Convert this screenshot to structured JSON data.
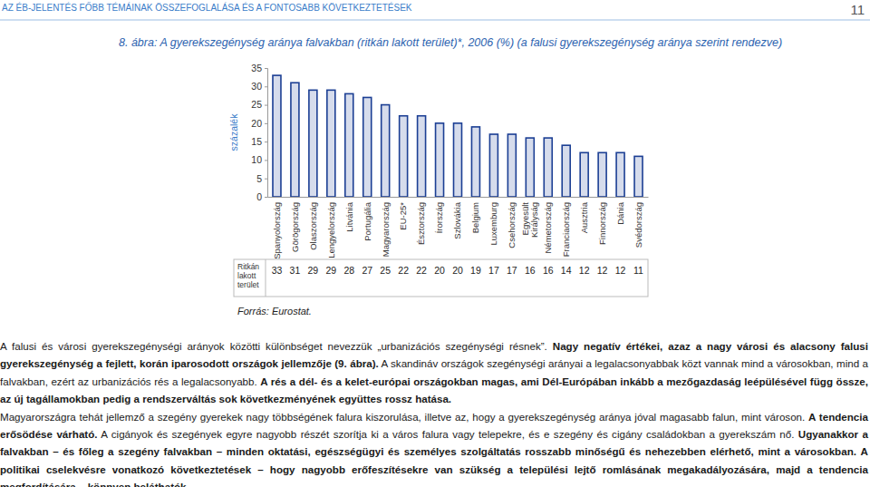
{
  "header": {
    "title": "AZ ÉB-JELENTÉS FŐBB TÉMÁINAK ÖSSZEFOGLALÁSA ÉS A FONTOSABB KÖVETKEZTETÉSEK",
    "page": "11"
  },
  "chart_data": {
    "type": "bar",
    "title": "8. ábra: A gyerekszegénység aránya falvakban (ritkán lakott terület)*, 2006 (%) (a falusi gyerekszegénység aránya szerint rendezve)",
    "y_label": "százalék",
    "categories": [
      "Spanyolország",
      "Görögország",
      "Olaszország",
      "Lengyelország",
      "Litvánia",
      "Portugália",
      "Magyarország",
      "EU-25*",
      "Észtország",
      "Írország",
      "Szlovákia",
      "Belgium",
      "Luxemburg",
      "Csehország",
      "Egyesült Királyság",
      "Németország",
      "Franciaország",
      "Ausztria",
      "Finnország",
      "Dánia",
      "Svédország"
    ],
    "series": [
      {
        "name": "Ritkán lakott terület",
        "color": "#1c3f94",
        "values": [
          33,
          31,
          29,
          29,
          28,
          27,
          25,
          22,
          22,
          20,
          20,
          19,
          17,
          17,
          16,
          16,
          14,
          12,
          12,
          12,
          11
        ]
      }
    ],
    "ylim": [
      0,
      35
    ],
    "yticks": [
      0,
      5,
      10,
      15,
      20,
      25,
      30,
      35
    ],
    "grid": false,
    "data_labels": true,
    "source": "Forrás: Eurostat."
  },
  "text": {
    "paragraphs": [
      [
        {
          "text": "A falusi és városi gyerekszegénységi arányok közötti különbséget nevezzük „urbanizációs szegénységi résnek”.",
          "bold": false
        },
        {
          "text": "Nagy negatív értékei, azaz a nagy városi és alacsony falusi gyerekszegénység a fejlett, korán iparosodott országok jellemzője (9. ábra).",
          "bold": true
        },
        {
          "text": "A skandináv országok szegénységi arányai a legalacsonyabbak közt vannak mind a városokban, mind a falvakban, ezért az urbanizációs rés a legalacsonyabb.",
          "bold": false
        },
        {
          "text": "A rés a dél- és a kelet-európai országokban magas, ami Dél-Európában inkább a mezőgazdaság leépülésével függ össze, az új tagállamokban pedig a rendszerváltás sok következményének együttes rossz hatása.",
          "bold": true
        }
      ],
      [
        {
          "text": "Magyarországra tehát jellemző a szegény gyerekek nagy többségének falura kiszorulása, illetve az, hogy a gyerekszegénység aránya jóval magasabb falun, mint városon.",
          "bold": false
        },
        {
          "text": "A tendencia erősödése várható.",
          "bold": true
        },
        {
          "text": "A cigányok és szegények egyre nagyobb részét szorítja ki a város falura vagy telepekre, és e szegény és cigány családokban a gyerekszám nő.",
          "bold": false
        },
        {
          "text": "Ugyanakkor a falvakban – és főleg a szegény falvakban – minden oktatási, egészségügyi és személyes szolgáltatás rosszabb minőségű és nehezebben elérhető, mint a városokban.",
          "bold": true
        },
        {
          "text": "A politikai cselekvésre vonatkozó következtetések – hogy nagyobb erőfeszítésekre van szükség a települési lejtő romlásának megakadályozására, majd a tendencia megfordítására – könnyen beláthatók.",
          "bold": true
        }
      ]
    ]
  }
}
